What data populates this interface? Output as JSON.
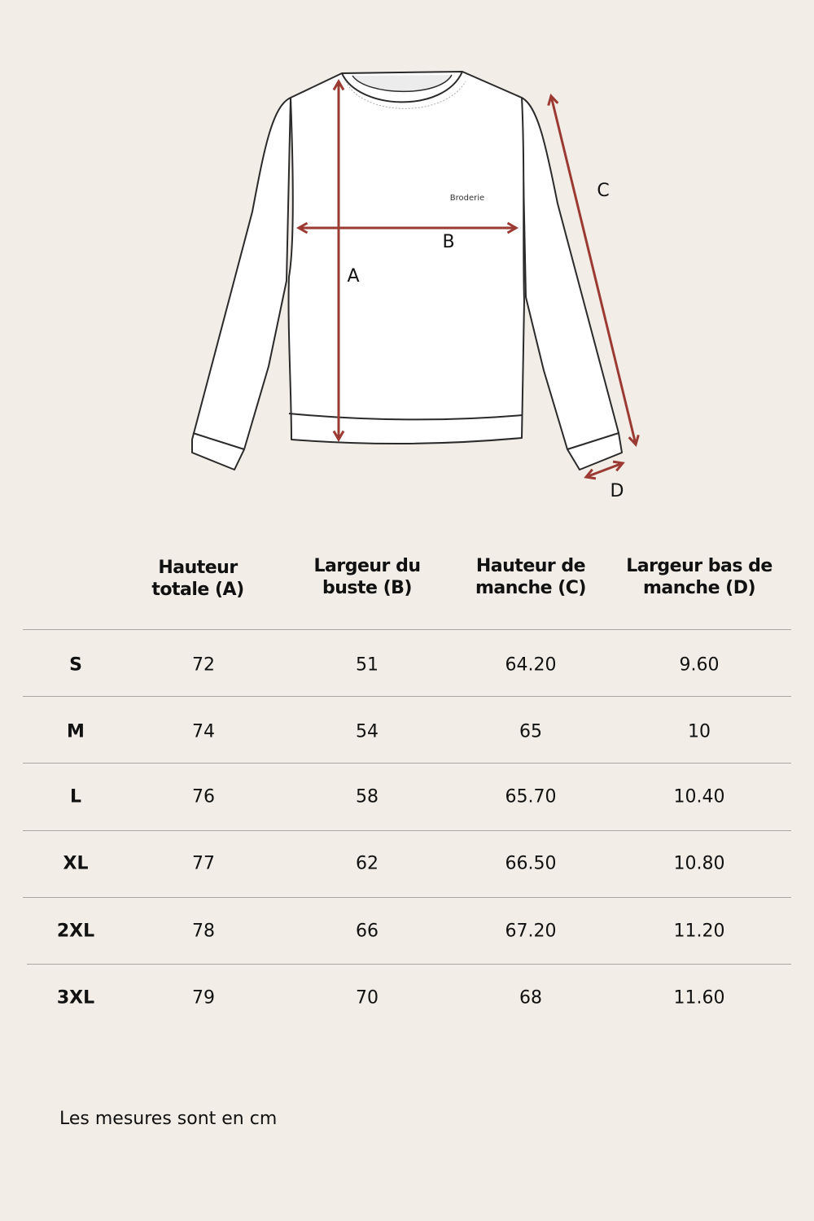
{
  "illustration": {
    "embroidery_label": "Broderie",
    "measure_labels": {
      "a": "A",
      "b": "B",
      "c": "C",
      "d": "D"
    },
    "arrow_color": "#9a3a33",
    "background_color": "#f2eee7"
  },
  "table": {
    "headers": [
      "Hauteur totale (A)",
      "Largeur du buste (B)",
      "Hauteur de manche (C)",
      "Largeur bas de manche (D)"
    ],
    "header_lines": [
      [
        "Hauteur",
        "totale (A)"
      ],
      [
        "Largeur du",
        "buste (B)"
      ],
      [
        "Hauteur de",
        "manche (C)"
      ],
      [
        "Largeur bas de",
        "manche (D)"
      ]
    ],
    "rows": [
      {
        "size": "S",
        "values": [
          "72",
          "51",
          "64.20",
          "9.60"
        ]
      },
      {
        "size": "M",
        "values": [
          "74",
          "54",
          "65",
          "10"
        ]
      },
      {
        "size": "L",
        "values": [
          "76",
          "58",
          "65.70",
          "10.40"
        ]
      },
      {
        "size": "XL",
        "values": [
          "77",
          "62",
          "66.50",
          "10.80"
        ]
      },
      {
        "size": "2XL",
        "values": [
          "78",
          "66",
          "67.20",
          "11.20"
        ]
      },
      {
        "size": "3XL",
        "values": [
          "79",
          "70",
          "68",
          "11.60"
        ]
      }
    ]
  },
  "footer": {
    "note": "Les mesures sont en cm"
  }
}
